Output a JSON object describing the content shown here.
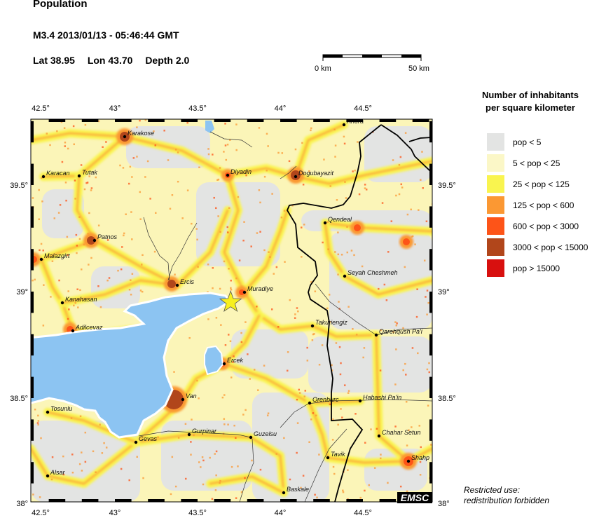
{
  "header": {
    "title": "Population",
    "event": "M3.4  2013/01/13 - 05:46:44 GMT",
    "lat_label": "Lat 38.95",
    "lon_label": "Lon  43.70",
    "depth_label": "Depth  2.0"
  },
  "epicenter": {
    "lat": 38.95,
    "lon": 43.7,
    "magnitude": "M3.4",
    "marker_color": "#f7f01e"
  },
  "scale_bar": {
    "start_label": "0 km",
    "end_label": "50 km"
  },
  "axes": {
    "lon_ticks": [
      "42.5°",
      "43°",
      "43.5°",
      "44°",
      "44.5°"
    ],
    "lat_ticks": [
      "39.5°",
      "39°",
      "38.5°",
      "38°"
    ]
  },
  "legend": {
    "title_line1": "Number of inhabitants",
    "title_line2": "per square kilometer",
    "items": [
      {
        "label": "pop < 5",
        "color": "#e3e4e3"
      },
      {
        "label": "5 < pop < 25",
        "color": "#fbf7c7"
      },
      {
        "label": "25 < pop < 125",
        "color": "#f9f44f"
      },
      {
        "label": "125 < pop < 600",
        "color": "#fb9833"
      },
      {
        "label": "600 < pop < 3000",
        "color": "#fd5418"
      },
      {
        "label": "3000 < pop < 15000",
        "color": "#b1461b"
      },
      {
        "label": "pop > 15000",
        "color": "#d8100f"
      }
    ]
  },
  "cities": [
    "Ahura",
    "Karakose",
    "Karacan",
    "Tutak",
    "Diyadin",
    "Dogubayazit",
    "Qendeal",
    "Patnos",
    "Malazgirt",
    "Seyah Cheshmeh",
    "Ercis",
    "Muradiye",
    "Kanahasan",
    "Takuriengiz",
    "Qarehqush Pa'i",
    "Adilcevaz",
    "Ercek",
    "Van",
    "Orenburc",
    "Habashi Pa'in",
    "Tosunlu",
    "Gurpinar",
    "Guzelsu",
    "Gevas",
    "Chahar Setun",
    "Tavik",
    "Shahp",
    "Alsar",
    "Baskale"
  ],
  "logo": "EMSC",
  "note": {
    "line1": "Restricted use:",
    "line2": "redistribution forbidden"
  },
  "colors": {
    "water": "#8cc4f2",
    "border": "#000000"
  }
}
